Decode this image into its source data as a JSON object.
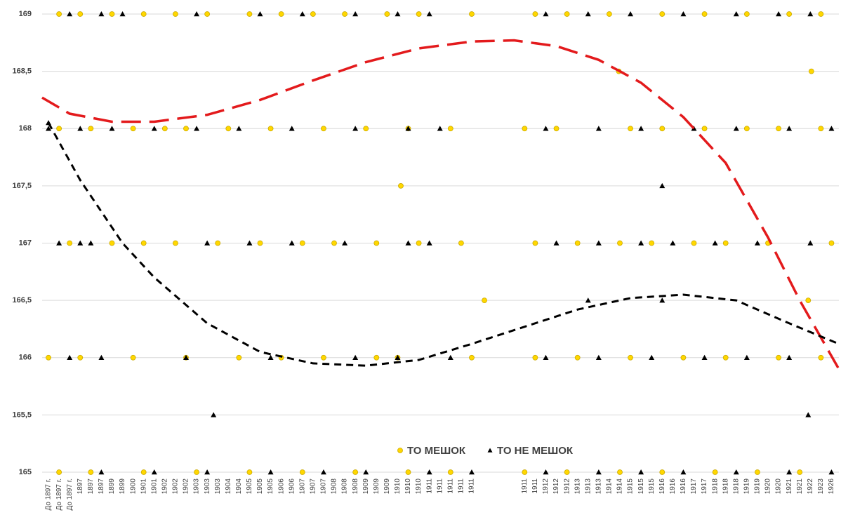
{
  "chart_data": {
    "type": "scatter",
    "xlim": [
      -0.6,
      74.7
    ],
    "ylim": [
      165,
      169
    ],
    "yticks": [
      165,
      {
        "value": 165.5,
        "label": "165,5"
      },
      166,
      {
        "value": 166.5,
        "label": "166,5"
      },
      167,
      {
        "value": 167.5,
        "label": "167,5"
      },
      168,
      {
        "value": 168.5,
        "label": "168,5"
      },
      169
    ],
    "xticks": [
      {
        "value": 0,
        "label": "До 1897 г."
      },
      {
        "value": 1,
        "label": "До 1897 г."
      },
      {
        "value": 2,
        "label": "До 1897 г."
      },
      {
        "value": 3,
        "label": "1897"
      },
      {
        "value": 4,
        "label": "1897"
      },
      {
        "value": 5,
        "label": "1897"
      },
      {
        "value": 6,
        "label": "1899"
      },
      {
        "value": 7,
        "label": "1899"
      },
      {
        "value": 8,
        "label": "1900"
      },
      {
        "value": 9,
        "label": "1901"
      },
      {
        "value": 10,
        "label": "1901"
      },
      {
        "value": 11,
        "label": "1902"
      },
      {
        "value": 12,
        "label": "1902"
      },
      {
        "value": 13,
        "label": "1902"
      },
      {
        "value": 14,
        "label": "1903"
      },
      {
        "value": 15,
        "label": "1903"
      },
      {
        "value": 16,
        "label": "1903"
      },
      {
        "value": 17,
        "label": "1904"
      },
      {
        "value": 18,
        "label": "1904"
      },
      {
        "value": 19,
        "label": "1905"
      },
      {
        "value": 20,
        "label": "1905"
      },
      {
        "value": 21,
        "label": "1905"
      },
      {
        "value": 22,
        "label": "1906"
      },
      {
        "value": 23,
        "label": "1906"
      },
      {
        "value": 24,
        "label": "1907"
      },
      {
        "value": 25,
        "label": "1907"
      },
      {
        "value": 26,
        "label": "1907"
      },
      {
        "value": 27,
        "label": "1908"
      },
      {
        "value": 28,
        "label": "1908"
      },
      {
        "value": 29,
        "label": "1908"
      },
      {
        "value": 30,
        "label": "1909"
      },
      {
        "value": 31,
        "label": "1909"
      },
      {
        "value": 32,
        "label": "1909"
      },
      {
        "value": 33,
        "label": "1910"
      },
      {
        "value": 34,
        "label": "1910"
      },
      {
        "value": 35,
        "label": "1910"
      },
      {
        "value": 36,
        "label": "1911"
      },
      {
        "value": 37,
        "label": "1911"
      },
      {
        "value": 38,
        "label": "1911"
      },
      {
        "value": 39,
        "label": "1911"
      },
      {
        "value": 40,
        "label": "1911"
      },
      {
        "value": 45,
        "label": "1911"
      },
      {
        "value": 46,
        "label": "1911"
      },
      {
        "value": 47,
        "label": "1912"
      },
      {
        "value": 48,
        "label": "1912"
      },
      {
        "value": 49,
        "label": "1912"
      },
      {
        "value": 50,
        "label": "1913"
      },
      {
        "value": 51,
        "label": "1913"
      },
      {
        "value": 52,
        "label": "1913"
      },
      {
        "value": 53,
        "label": "1914"
      },
      {
        "value": 54,
        "label": "1914"
      },
      {
        "value": 55,
        "label": "1915"
      },
      {
        "value": 56,
        "label": "1915"
      },
      {
        "value": 57,
        "label": "1915"
      },
      {
        "value": 58,
        "label": "1916"
      },
      {
        "value": 59,
        "label": "1916"
      },
      {
        "value": 60,
        "label": "1916"
      },
      {
        "value": 61,
        "label": "1917"
      },
      {
        "value": 62,
        "label": "1917"
      },
      {
        "value": 63,
        "label": "1918"
      },
      {
        "value": 64,
        "label": "1918"
      },
      {
        "value": 65,
        "label": "1918"
      },
      {
        "value": 66,
        "label": "1919"
      },
      {
        "value": 67,
        "label": "1919"
      },
      {
        "value": 68,
        "label": "1920"
      },
      {
        "value": 69,
        "label": "1920"
      },
      {
        "value": 70,
        "label": "1921"
      },
      {
        "value": 71,
        "label": "1921"
      },
      {
        "value": 72,
        "label": "1922"
      },
      {
        "value": 73,
        "label": "1923"
      },
      {
        "value": 74,
        "label": "1926"
      }
    ],
    "grid": true,
    "legend": "bottom",
    "series": [
      {
        "name": "ТО МЕШОК",
        "color": "#ffd700",
        "marker": "circle",
        "x": [
          1,
          3,
          6,
          9,
          12,
          15,
          19,
          22,
          25,
          28,
          32,
          35,
          40,
          46,
          49,
          53,
          58,
          62,
          66,
          70,
          73,
          1,
          4,
          8,
          11,
          13,
          17,
          21,
          26,
          30,
          34,
          38,
          45,
          48,
          55,
          58,
          62,
          66,
          69,
          73,
          2,
          6,
          9,
          12,
          16,
          20,
          24,
          27,
          31,
          35,
          39,
          46,
          50,
          54,
          57,
          61,
          64,
          68,
          74,
          0,
          3,
          8,
          13,
          18,
          22,
          26,
          31,
          33,
          40,
          46,
          50,
          55,
          60,
          64,
          69,
          73,
          1,
          4,
          9,
          14,
          19,
          24,
          29,
          34,
          38,
          45,
          49,
          54,
          58,
          63,
          67,
          71,
          33.3,
          41.2,
          53.9,
          72.1,
          71.8
        ],
        "values": [
          169,
          169,
          169,
          169,
          169,
          169,
          169,
          169,
          169,
          169,
          169,
          169,
          169,
          169,
          169,
          169,
          169,
          169,
          169,
          169,
          169,
          168,
          168,
          168,
          168,
          168,
          168,
          168,
          168,
          168,
          168,
          168,
          168,
          168,
          168,
          168,
          168,
          168,
          168,
          168,
          167,
          167,
          167,
          167,
          167,
          167,
          167,
          167,
          167,
          167,
          167,
          167,
          167,
          167,
          167,
          167,
          167,
          167,
          167,
          166,
          166,
          166,
          166,
          166,
          166,
          166,
          166,
          166,
          166,
          166,
          166,
          166,
          166,
          166,
          166,
          166,
          165,
          165,
          165,
          165,
          165,
          165,
          165,
          165,
          165,
          165,
          165,
          165,
          165,
          165,
          165,
          165,
          167.5,
          166.5,
          168.5,
          168.5,
          166.5
        ]
      },
      {
        "name": "ТО НЕ МЕШОК",
        "color": "#000000",
        "marker": "triangle",
        "x": [
          2,
          5,
          7,
          14,
          20,
          24,
          29,
          33,
          36,
          47,
          51,
          55,
          60,
          65,
          69,
          72,
          0,
          3,
          6,
          10,
          14,
          18,
          23,
          29,
          34,
          37,
          47,
          52,
          56,
          61,
          65,
          70,
          74,
          1,
          3,
          4,
          15,
          19,
          23,
          28,
          34,
          36,
          48,
          52,
          56,
          59,
          63,
          67,
          72,
          2,
          5,
          13,
          21,
          29,
          33,
          38,
          47,
          52,
          57,
          62,
          66,
          70,
          5,
          10,
          15,
          21,
          26,
          30,
          36,
          40,
          47,
          52,
          56,
          60,
          65,
          70,
          74,
          0,
          15.6,
          51,
          58,
          58,
          71.8
        ],
        "values": [
          169,
          169,
          169,
          169,
          169,
          169,
          169,
          169,
          169,
          169,
          169,
          169,
          169,
          169,
          169,
          169,
          168,
          168,
          168,
          168,
          168,
          168,
          168,
          168,
          168,
          168,
          168,
          168,
          168,
          168,
          168,
          168,
          168,
          167,
          167,
          167,
          167,
          167,
          167,
          167,
          167,
          167,
          167,
          167,
          167,
          167,
          167,
          167,
          167,
          166,
          166,
          166,
          166,
          166,
          166,
          166,
          166,
          166,
          166,
          166,
          166,
          166,
          165,
          165,
          165,
          165,
          165,
          165,
          165,
          165,
          165,
          165,
          165,
          165,
          165,
          165,
          165,
          168.05,
          165.5,
          166.5,
          167.5,
          166.5,
          165.5
        ]
      }
    ],
    "trendlines": [
      {
        "color": "#e31a1c",
        "dash": "long",
        "x": [
          -0.6,
          2,
          6,
          10,
          15,
          20,
          25,
          30,
          35,
          40,
          44,
          48,
          52,
          56,
          60,
          64,
          68,
          71,
          74.7
        ],
        "values": [
          168.27,
          168.13,
          168.06,
          168.06,
          168.12,
          168.25,
          168.42,
          168.58,
          168.7,
          168.76,
          168.77,
          168.72,
          168.6,
          168.4,
          168.1,
          167.7,
          167.05,
          166.5,
          165.9
        ]
      },
      {
        "color": "#000000",
        "dash": "short",
        "x": [
          0,
          3,
          7,
          10,
          15,
          20,
          25,
          30,
          35,
          40,
          45,
          50,
          55,
          60,
          65,
          70,
          74.7
        ],
        "values": [
          168.05,
          167.55,
          167.0,
          166.7,
          166.3,
          166.05,
          165.95,
          165.93,
          165.98,
          166.12,
          166.27,
          166.42,
          166.52,
          166.55,
          166.5,
          166.3,
          166.12
        ]
      }
    ]
  }
}
